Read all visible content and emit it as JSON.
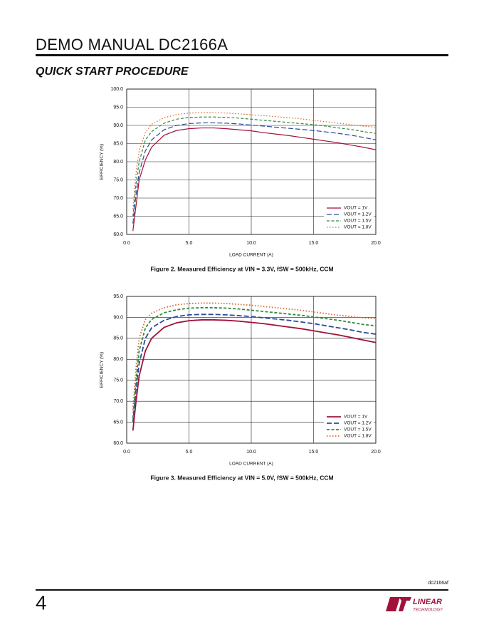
{
  "header": {
    "title": "DEMO MANUAL DC2166A",
    "section": "QUICK START PROCEDURE"
  },
  "chart_data": [
    {
      "type": "line",
      "xlabel": "LOAD CURRENT (A)",
      "ylabel": "EFFICIENCY (%)",
      "caption": "Figure 2. Measured Efficiency at VIN = 3.3V, fSW = 500kHz, CCM",
      "xlim": [
        0,
        20
      ],
      "ylim": [
        60,
        100
      ],
      "xticks": [
        {
          "value": 0,
          "label": "0.0"
        },
        {
          "value": 5,
          "label": "5.0"
        },
        {
          "value": 10,
          "label": "10.0"
        },
        {
          "value": 15,
          "label": "15.0"
        },
        {
          "value": 20,
          "label": "20.0"
        }
      ],
      "yticks": [
        {
          "value": 60,
          "label": "60.0"
        },
        {
          "value": 65,
          "label": "65.0"
        },
        {
          "value": 70,
          "label": "70.0"
        },
        {
          "value": 75,
          "label": "75.0"
        },
        {
          "value": 80,
          "label": "80.0"
        },
        {
          "value": 85,
          "label": "85.0"
        },
        {
          "value": 90,
          "label": "90.0"
        },
        {
          "value": 95,
          "label": "95.0"
        },
        {
          "value": 100,
          "label": "100.0"
        }
      ],
      "grid": true,
      "legend": "lower right",
      "x": [
        0.5,
        0.75,
        1,
        1.5,
        2,
        3,
        4,
        5,
        6,
        7,
        8,
        9,
        10,
        11,
        12,
        13,
        14,
        15,
        16,
        17,
        18,
        19,
        20
      ],
      "series": [
        {
          "name": "VOUT = 1V",
          "color": "#a0123a",
          "dash": "solid",
          "values": [
            61,
            68,
            75,
            80.5,
            84,
            87.3,
            88.6,
            89.1,
            89.3,
            89.3,
            89.1,
            88.8,
            88.5,
            88.0,
            87.6,
            87.2,
            86.7,
            86.2,
            85.7,
            85.2,
            84.6,
            84.0,
            83.3
          ]
        },
        {
          "name": "VOUT = 1.2V",
          "color": "#2b4a9a",
          "dash": "long",
          "values": [
            63,
            71,
            77,
            83,
            86,
            88.8,
            90,
            90.5,
            90.7,
            90.7,
            90.6,
            90.4,
            90.1,
            89.8,
            89.5,
            89.2,
            88.9,
            88.6,
            88.2,
            87.8,
            87.3,
            86.7,
            86.0
          ]
        },
        {
          "name": "VOUT = 1.5V",
          "color": "#2f8a3f",
          "dash": "short",
          "values": [
            65,
            74,
            80,
            86,
            88.3,
            90.6,
            91.7,
            92.2,
            92.3,
            92.3,
            92.2,
            92.0,
            91.7,
            91.4,
            91.1,
            90.8,
            90.5,
            90.2,
            89.8,
            89.3,
            88.9,
            88.3,
            87.8
          ]
        },
        {
          "name": "VOUT = 1.8V",
          "color": "#d9662a",
          "dash": "dot",
          "values": [
            67,
            77,
            83,
            88,
            90.3,
            92.1,
            93,
            93.4,
            93.5,
            93.5,
            93.4,
            93.2,
            92.9,
            92.7,
            92.4,
            92.1,
            91.8,
            91.4,
            91.0,
            90.6,
            90.2,
            89.8,
            89.5
          ]
        }
      ]
    },
    {
      "type": "line",
      "xlabel": "LOAD CURRENT (A)",
      "ylabel": "EFFICIENCY (%)",
      "caption": "Figure 3. Measured Efficiency at VIN = 5.0V, fSW = 500kHz, CCM",
      "xlim": [
        0,
        20
      ],
      "ylim": [
        60,
        95
      ],
      "xticks": [
        {
          "value": 0,
          "label": "0.0"
        },
        {
          "value": 5,
          "label": "5.0"
        },
        {
          "value": 10,
          "label": "10.0"
        },
        {
          "value": 15,
          "label": "15.0"
        },
        {
          "value": 20,
          "label": "20.0"
        }
      ],
      "yticks": [
        {
          "value": 60,
          "label": "60.0"
        },
        {
          "value": 65,
          "label": "65.0"
        },
        {
          "value": 70,
          "label": "70.0"
        },
        {
          "value": 75,
          "label": "75.0"
        },
        {
          "value": 80,
          "label": "80.0"
        },
        {
          "value": 85,
          "label": "85.0"
        },
        {
          "value": 90,
          "label": "90.0"
        },
        {
          "value": 95,
          "label": "95.0"
        }
      ],
      "grid": true,
      "legend": "lower right",
      "x": [
        0.5,
        0.75,
        1,
        1.5,
        2,
        3,
        4,
        5,
        6,
        7,
        8,
        9,
        10,
        11,
        12,
        13,
        14,
        15,
        16,
        17,
        18,
        19,
        20
      ],
      "series": [
        {
          "name": "VOUT = 1V",
          "color": "#a0123a",
          "dash": "solid",
          "values": [
            63,
            70,
            76,
            82,
            85,
            87.6,
            88.7,
            89.2,
            89.4,
            89.4,
            89.3,
            89.1,
            88.8,
            88.5,
            88.1,
            87.7,
            87.3,
            86.8,
            86.3,
            85.8,
            85.2,
            84.6,
            84.0
          ]
        },
        {
          "name": "VOUT = 1.2V",
          "color": "#2b4a9a",
          "dash": "long",
          "values": [
            65,
            73,
            79,
            85,
            87.5,
            89.3,
            90.2,
            90.6,
            90.7,
            90.7,
            90.6,
            90.4,
            90.2,
            89.9,
            89.6,
            89.3,
            88.9,
            88.5,
            88.0,
            87.5,
            87.0,
            86.4,
            86.0
          ]
        },
        {
          "name": "VOUT = 1.5V",
          "color": "#2f8a3f",
          "dash": "short",
          "values": [
            66,
            75,
            82,
            87.5,
            89.5,
            91.1,
            91.8,
            92.2,
            92.3,
            92.3,
            92.2,
            92.0,
            91.7,
            91.4,
            91.1,
            90.8,
            90.5,
            90.1,
            89.7,
            89.3,
            88.8,
            88.3,
            88.0
          ]
        },
        {
          "name": "VOUT = 1.8V",
          "color": "#d9662a",
          "dash": "dot",
          "values": [
            68,
            78,
            85,
            89.5,
            91,
            92.3,
            93,
            93.3,
            93.4,
            93.4,
            93.3,
            93.1,
            92.9,
            92.6,
            92.3,
            92.0,
            91.7,
            91.3,
            90.9,
            90.5,
            90.2,
            89.9,
            89.7
          ]
        }
      ]
    }
  ],
  "footer": {
    "doc_id": "dc2166af",
    "page": "4",
    "logo": [
      "LINEAR",
      "TECHNOLOGY"
    ]
  }
}
